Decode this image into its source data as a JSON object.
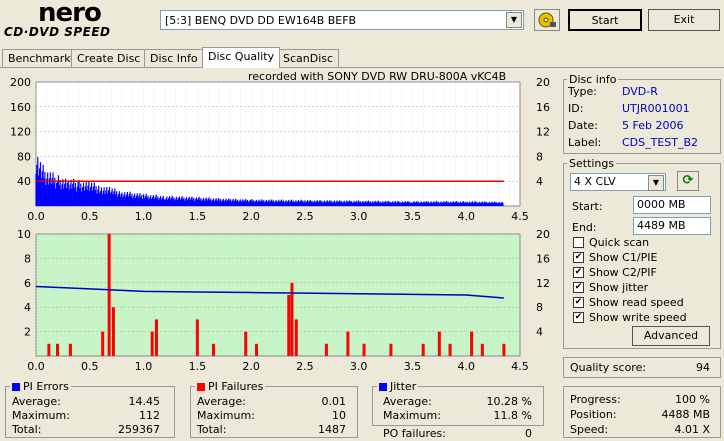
{
  "brand": {
    "name": "nero",
    "sub": "CD·DVD SPEED"
  },
  "drive": {
    "selected": "[5:3]  BENQ DVD DD EW164B BEFB"
  },
  "buttons": {
    "start": "Start",
    "exit": "Exit",
    "advanced": "Advanced"
  },
  "tabs": [
    {
      "label": "Benchmark"
    },
    {
      "label": "Create Disc"
    },
    {
      "label": "Disc Info"
    },
    {
      "label": "Disc Quality"
    },
    {
      "label": "ScanDisc"
    }
  ],
  "recorded_with": "recorded with SONY      DVD RW DRU-800A   vKC4B",
  "chart_data": [
    {
      "type": "area",
      "name": "PI Errors / read speed",
      "ylim_left": [
        0,
        200
      ],
      "ylim_right": [
        0,
        20
      ],
      "yticks_left": [
        "200",
        "160",
        "120",
        "80",
        "40"
      ],
      "yticks_right": [
        "20",
        "16",
        "12",
        "8",
        "4"
      ],
      "xticks": [
        "0.0",
        "0.5",
        "1.0",
        "1.5",
        "2.0",
        "2.5",
        "3.0",
        "3.5",
        "4.0",
        "4.5"
      ],
      "xlim": [
        0,
        4.5
      ],
      "series": [
        {
          "name": "PI Errors",
          "color": "#0000ff",
          "x": [
            0.0,
            0.05,
            0.1,
            0.2,
            0.3,
            0.4,
            0.5,
            0.6,
            0.7,
            0.8,
            1.0,
            1.2,
            1.5,
            1.8,
            2.0,
            2.5,
            3.0,
            3.5,
            4.0,
            4.35
          ],
          "values": [
            95,
            70,
            60,
            50,
            45,
            42,
            40,
            35,
            30,
            25,
            20,
            17,
            15,
            12,
            11,
            10,
            9,
            8,
            8,
            7
          ]
        },
        {
          "name": "Read speed",
          "color": "#e00000",
          "x": [
            0.0,
            4.35
          ],
          "values": [
            4,
            4
          ]
        }
      ]
    },
    {
      "type": "bar",
      "name": "PI Failures / jitter",
      "ylim_left": [
        0,
        10
      ],
      "ylim_right": [
        0,
        20
      ],
      "yticks_left": [
        "10",
        "8",
        "6",
        "4",
        "2"
      ],
      "yticks_right": [
        "20",
        "16",
        "12",
        "8",
        "4"
      ],
      "xticks": [
        "0.0",
        "0.5",
        "1.0",
        "1.5",
        "2.0",
        "2.5",
        "3.0",
        "3.5",
        "4.0",
        "4.5"
      ],
      "xlim": [
        0,
        4.5
      ],
      "series": [
        {
          "name": "PI Failures",
          "color": "#ff0000",
          "x": [
            0.12,
            0.2,
            0.32,
            0.62,
            0.68,
            0.72,
            1.08,
            1.12,
            1.5,
            1.65,
            1.95,
            2.05,
            2.35,
            2.38,
            2.42,
            2.7,
            2.9,
            3.05,
            3.3,
            3.6,
            3.75,
            3.85,
            4.05,
            4.15,
            4.35
          ],
          "values": [
            1,
            1,
            1,
            2,
            10,
            4,
            2,
            3,
            3,
            1,
            2,
            1,
            5,
            6,
            3,
            1,
            2,
            1,
            1,
            1,
            2,
            1,
            2,
            1,
            1
          ]
        },
        {
          "name": "Jitter",
          "color": "#0000c0",
          "x": [
            0.0,
            0.5,
            1.0,
            1.5,
            2.0,
            2.5,
            3.0,
            3.5,
            4.0,
            4.35
          ],
          "values": [
            11.4,
            11.0,
            10.6,
            10.5,
            10.4,
            10.3,
            10.2,
            10.1,
            10.0,
            9.5
          ]
        }
      ]
    }
  ],
  "disc_info": {
    "title": "Disc info",
    "type_label": "Type:",
    "type": "DVD-R",
    "id_label": "ID:",
    "id": "UTJR001001",
    "date_label": "Date:",
    "date": "5 Feb 2006",
    "label_label": "Label:",
    "label": "CDS_TEST_B2"
  },
  "settings": {
    "title": "Settings",
    "speed": "4 X CLV",
    "start_label": "Start:",
    "start": "0000 MB",
    "end_label": "End:",
    "end": "4489 MB",
    "checks": [
      {
        "label": "Quick scan",
        "checked": false
      },
      {
        "label": "Show C1/PIE",
        "checked": true
      },
      {
        "label": "Show C2/PIF",
        "checked": true
      },
      {
        "label": "Show jitter",
        "checked": true
      },
      {
        "label": "Show read speed",
        "checked": true
      },
      {
        "label": "Show write speed",
        "checked": true
      }
    ]
  },
  "quality": {
    "label": "Quality score:",
    "value": "94"
  },
  "pi_errors": {
    "title": "PI Errors",
    "color": "#0000ff",
    "avg_label": "Average:",
    "avg": "14.45",
    "max_label": "Maximum:",
    "max": "112",
    "total_label": "Total:",
    "total": "259367"
  },
  "pi_failures": {
    "title": "PI Failures",
    "color": "#ff0000",
    "avg_label": "Average:",
    "avg": "0.01",
    "max_label": "Maximum:",
    "max": "10",
    "total_label": "Total:",
    "total": "1487"
  },
  "jitter": {
    "title": "Jitter",
    "color": "#0000ff",
    "avg_label": "Average:",
    "avg": "10.28 %",
    "max_label": "Maximum:",
    "max": "11.8 %",
    "po_label": "PO failures:",
    "po": "0"
  },
  "progress": {
    "progress_label": "Progress:",
    "progress": "100 %",
    "position_label": "Position:",
    "position": "4488 MB",
    "speed_label": "Speed:",
    "speed": "4.01 X"
  }
}
